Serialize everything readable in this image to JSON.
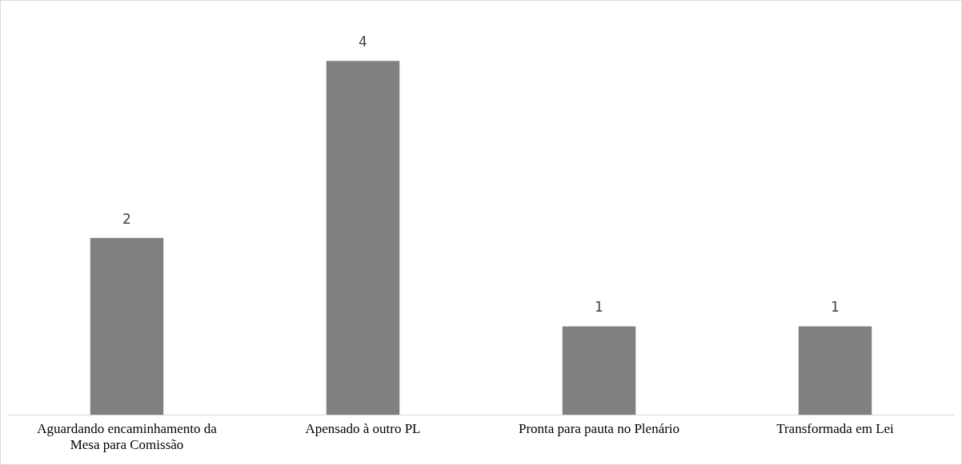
{
  "chart_data": {
    "type": "bar",
    "categories": [
      "Aguardando encaminhamento da Mesa para Comissão",
      "Apensado à outro PL",
      "Pronta para pauta no Plenário",
      "Transformada em Lei"
    ],
    "values": [
      2,
      4,
      1,
      1
    ],
    "color": "#808080",
    "data_labels": true,
    "grid": false,
    "legend": false
  }
}
